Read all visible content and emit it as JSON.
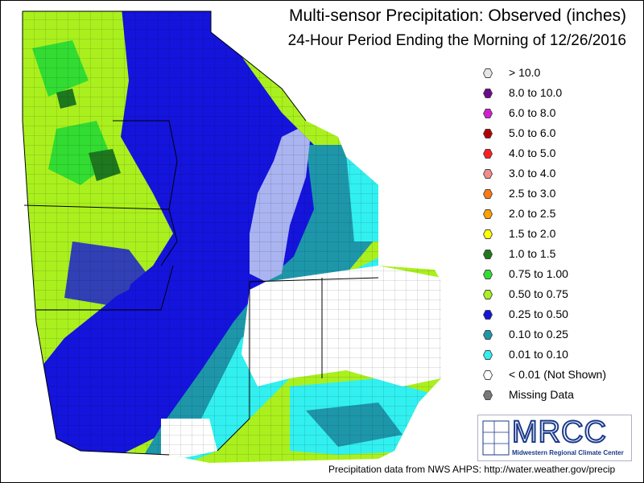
{
  "title": "Multi-sensor Precipitation:  Observed (inches)",
  "subtitle": "24-Hour Period Ending the Morning of 12/26/2016",
  "legend": [
    {
      "label": "> 10.0",
      "color": "#e6e6e6"
    },
    {
      "label": "8.0 to 10.0",
      "color": "#6a0a8a"
    },
    {
      "label": "6.0 to 8.0",
      "color": "#d21ed2"
    },
    {
      "label": "5.0 to 6.0",
      "color": "#b40000"
    },
    {
      "label": "4.0 to 5.0",
      "color": "#ff1e1e"
    },
    {
      "label": "3.0 to 4.0",
      "color": "#f08c8c"
    },
    {
      "label": "2.5 to 3.0",
      "color": "#ff7814"
    },
    {
      "label": "2.0 to 2.5",
      "color": "#ffa000"
    },
    {
      "label": "1.5 to 2.0",
      "color": "#ffff00"
    },
    {
      "label": "1.0 to 1.5",
      "color": "#1e781e"
    },
    {
      "label": "0.75 to 1.00",
      "color": "#32dc32"
    },
    {
      "label": "0.50 to 0.75",
      "color": "#aaf01e"
    },
    {
      "label": "0.25 to 0.50",
      "color": "#1414dc"
    },
    {
      "label": "0.10 to 0.25",
      "color": "#1e96aa"
    },
    {
      "label": "0.01 to 0.10",
      "color": "#32f0f0"
    },
    {
      "label": "< 0.01 (Not Shown)",
      "color": "#ffffff"
    },
    {
      "label": "Missing Data",
      "color": "#787878"
    }
  ],
  "logo": {
    "name": "MRCC",
    "subtitle": "Midwestern Regional Climate Center"
  },
  "credit": "Precipitation data from NWS AHPS: http://water.weather.gov/precip"
}
